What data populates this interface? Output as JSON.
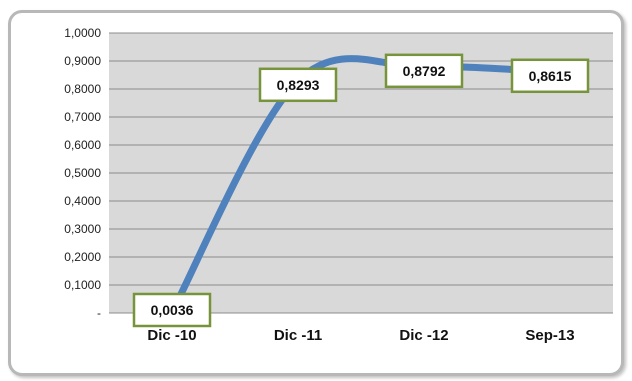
{
  "chart_data": {
    "type": "line",
    "title": "",
    "xlabel": "",
    "ylabel": "",
    "categories": [
      "Dic -10",
      "Dic -11",
      "Dic -12",
      "Sep-13"
    ],
    "series": [
      {
        "values": [
          0.0036,
          0.8293,
          0.8792,
          0.8615
        ]
      }
    ],
    "data_labels": [
      "0,0036",
      "0,8293",
      "0,8792",
      "0,8615"
    ],
    "ylim": [
      0,
      1.0
    ],
    "yticks": [
      0,
      0.1,
      0.2,
      0.3,
      0.4,
      0.5,
      0.6,
      0.7,
      0.8,
      0.9,
      1.0
    ],
    "ytick_labels": [
      "-",
      "0,1000",
      "0,2000",
      "0,3000",
      "0,4000",
      "0,5000",
      "0,6000",
      "0,7000",
      "0,8000",
      "0,9000",
      "1,0000"
    ],
    "grid": true,
    "smooth": true,
    "legend": "none",
    "colors": {
      "line": "#4f81bd",
      "plot_area": "#d9d9d9",
      "gridline": "#8c8c8c",
      "label_border": "#77933c",
      "label_fill": "#ffffff"
    }
  }
}
